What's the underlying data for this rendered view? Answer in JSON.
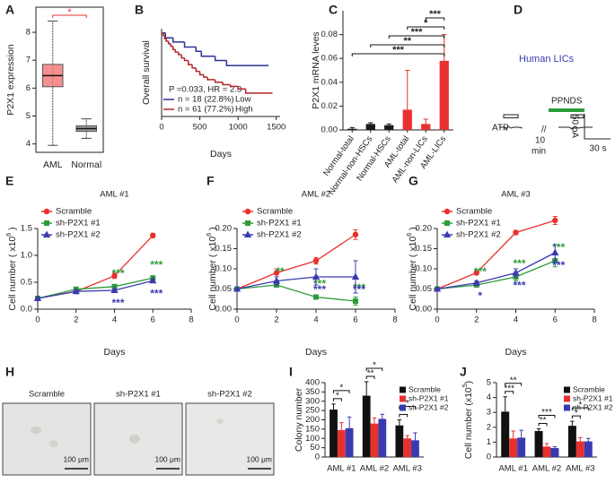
{
  "chart_data": [
    {
      "panel": "A",
      "type": "box",
      "ylabel": "P2X1 expression",
      "categories": [
        "AML",
        "Normal"
      ],
      "boxes": [
        {
          "color": "#f47c7c",
          "min": 3.95,
          "q1": 6.05,
          "median": 6.45,
          "q3": 6.85,
          "max": 8.4
        },
        {
          "color": "#8c8c8c",
          "min": 4.2,
          "q1": 4.45,
          "median": 4.55,
          "q3": 4.65,
          "max": 4.9
        }
      ],
      "ylim": [
        3.7,
        8.9
      ],
      "yticks": [
        4,
        5,
        6,
        7,
        8
      ],
      "significance": "*",
      "significance_color": "#e8312f"
    },
    {
      "panel": "B",
      "type": "line",
      "step": true,
      "ylabel": "Overall survival",
      "xlabel": "Days",
      "xlim": [
        0,
        1550
      ],
      "xticks": [
        0,
        500,
        1000,
        1500
      ],
      "ylim": [
        0,
        1.05
      ],
      "annotation": "P =0.033, HR = 2.3",
      "series": [
        {
          "name": "n = 18 (22.8%)",
          "group": "Low",
          "color": "#2e3192",
          "x": [
            0,
            50,
            150,
            300,
            450,
            520,
            700,
            850,
            1400
          ],
          "values": [
            1,
            0.94,
            0.89,
            0.83,
            0.78,
            0.72,
            0.67,
            0.61,
            0.61
          ]
        },
        {
          "name": "n = 61 (77.2%)",
          "group": "High",
          "color": "#b2262b",
          "x": [
            0,
            20,
            40,
            60,
            90,
            120,
            150,
            180,
            220,
            260,
            300,
            350,
            400,
            450,
            500,
            550,
            600,
            700,
            800,
            900,
            1000,
            1100,
            1450
          ],
          "values": [
            1,
            0.97,
            0.93,
            0.9,
            0.87,
            0.84,
            0.8,
            0.77,
            0.74,
            0.7,
            0.67,
            0.62,
            0.58,
            0.54,
            0.5,
            0.47,
            0.44,
            0.41,
            0.38,
            0.36,
            0.33,
            0.28,
            0.28
          ]
        }
      ]
    },
    {
      "panel": "C",
      "type": "bar",
      "ylabel": "P2X1 mRNA leves",
      "categories": [
        "Normal-total",
        "Normal-non-HSCs",
        "Normal-HSCs",
        "AML-total",
        "AML-non-LICs",
        "AML-LICs"
      ],
      "values": [
        0.001,
        0.005,
        0.004,
        0.017,
        0.005,
        0.058
      ],
      "errors": [
        0.001,
        0.001,
        0.001,
        0.033,
        0.004,
        0.022
      ],
      "colors": [
        "#1a1a1a",
        "#1a1a1a",
        "#1a1a1a",
        "#e8312f",
        "#e8312f",
        "#e8312f"
      ],
      "ylim": [
        0,
        0.1
      ],
      "yticks": [
        {
          "value": 0,
          "label": "0.00"
        },
        0.02,
        0.04,
        0.06,
        0.08
      ],
      "significance": [
        "***",
        "**",
        "***",
        "*",
        "***"
      ]
    },
    {
      "panel": "E",
      "type": "line",
      "title": "AML #1",
      "xlabel": "Days",
      "ylabel": [
        "Cell number ( x10",
        "6",
        " )"
      ],
      "x": [
        0,
        2,
        4,
        6
      ],
      "xlim": [
        0,
        8
      ],
      "xticks": [
        0,
        2,
        4,
        6,
        8
      ],
      "ylim": [
        0,
        1.5
      ],
      "yticks": [
        {
          "value": 0,
          "label": "0.0"
        },
        0.5,
        {
          "value": 1,
          "label": "1.0"
        },
        1.5
      ],
      "series": [
        {
          "name": "Scramble",
          "color": "#e8312f",
          "marker": "circle",
          "values": [
            0.2,
            0.33,
            0.62,
            1.37
          ],
          "errors": [
            0,
            0.02,
            0.05,
            0.04
          ]
        },
        {
          "name": "sh-P2X1 #1",
          "color": "#2e9b3a",
          "marker": "square",
          "values": [
            0.2,
            0.37,
            0.42,
            0.58
          ],
          "errors": [
            0,
            0.02,
            0.03,
            0.03
          ],
          "stars": [
            null,
            null,
            "***",
            "***"
          ]
        },
        {
          "name": "sh-P2X1 #2",
          "color": "#3a3ab0",
          "marker": "triangle",
          "values": [
            0.2,
            0.33,
            0.35,
            0.53
          ],
          "errors": [
            0,
            0.02,
            0.02,
            0.03
          ],
          "stars": [
            null,
            null,
            "***",
            "***"
          ]
        }
      ]
    },
    {
      "panel": "F",
      "type": "line",
      "title": "AML #2",
      "xlabel": "Days",
      "ylabel": [
        "Cell number ( x10",
        "6",
        " )"
      ],
      "x": [
        0,
        2,
        4,
        6
      ],
      "xlim": [
        0,
        8
      ],
      "xticks": [
        0,
        2,
        4,
        6,
        8
      ],
      "ylim": [
        0,
        0.2
      ],
      "yticks": [
        {
          "value": 0,
          "label": "0.00"
        },
        0.05,
        {
          "value": 0.1,
          "label": "0.10"
        },
        0.15,
        {
          "value": 0.2,
          "label": "0.20"
        }
      ],
      "series": [
        {
          "name": "Scramble",
          "color": "#e8312f",
          "marker": "circle",
          "values": [
            0.05,
            0.09,
            0.12,
            0.185
          ],
          "errors": [
            0,
            0.01,
            0.008,
            0.012
          ]
        },
        {
          "name": "sh-P2X1 #1",
          "color": "#2e9b3a",
          "marker": "square",
          "values": [
            0.05,
            0.06,
            0.03,
            0.02
          ],
          "errors": [
            0,
            0.005,
            0.005,
            0.01
          ],
          "stars": [
            null,
            "**",
            "***",
            "***"
          ]
        },
        {
          "name": "sh-P2X1 #2",
          "color": "#3a3ab0",
          "marker": "triangle",
          "values": [
            0.05,
            0.07,
            0.08,
            0.08
          ],
          "errors": [
            0,
            0.01,
            0.02,
            0.04
          ],
          "stars": [
            null,
            null,
            "***",
            "***"
          ]
        }
      ]
    },
    {
      "panel": "G",
      "type": "line",
      "title": "AML #3",
      "xlabel": "Days",
      "ylabel": [
        "Cell number ( x10",
        "6",
        " )"
      ],
      "x": [
        0,
        2,
        4,
        6
      ],
      "xlim": [
        0,
        8
      ],
      "xticks": [
        0,
        2,
        4,
        6,
        8
      ],
      "ylim": [
        0,
        0.2
      ],
      "yticks": [
        {
          "value": 0,
          "label": "0.00"
        },
        0.05,
        {
          "value": 0.1,
          "label": "0.10"
        },
        0.15,
        {
          "value": 0.2,
          "label": "0.20"
        }
      ],
      "series": [
        {
          "name": "Scramble",
          "color": "#e8312f",
          "marker": "circle",
          "values": [
            0.05,
            0.09,
            0.19,
            0.22
          ],
          "errors": [
            0,
            0.005,
            0.005,
            0.01
          ]
        },
        {
          "name": "sh-P2X1 #1",
          "color": "#2e9b3a",
          "marker": "square",
          "values": [
            0.05,
            0.06,
            0.08,
            0.12
          ],
          "errors": [
            0,
            0.005,
            0.01,
            0.015
          ],
          "stars": [
            null,
            "***",
            "***",
            "***"
          ]
        },
        {
          "name": "sh-P2X1 #2",
          "color": "#3a3ab0",
          "marker": "triangle",
          "values": [
            0.05,
            0.065,
            0.09,
            0.14
          ],
          "errors": [
            0,
            0.005,
            0.01,
            0.02
          ],
          "stars": [
            null,
            "*",
            "***",
            "***"
          ]
        }
      ]
    },
    {
      "panel": "I",
      "type": "bar",
      "ylabel": "Colony number",
      "categories": [
        "AML #1",
        "AML #2",
        "AML #3"
      ],
      "ylim": [
        0,
        400
      ],
      "yticks": [
        0,
        50,
        100,
        150,
        200,
        250,
        300,
        350,
        400
      ],
      "series": [
        {
          "name": "Scramble",
          "color": "#111111",
          "values": [
            255,
            330,
            170
          ],
          "errors": [
            30,
            75,
            30
          ]
        },
        {
          "name": "sh-P2X1 #1",
          "color": "#e8312f",
          "values": [
            145,
            180,
            100
          ],
          "errors": [
            40,
            30,
            15
          ]
        },
        {
          "name": "sh-P2X1 #2",
          "color": "#3a3ab0",
          "values": [
            155,
            205,
            90
          ],
          "errors": [
            60,
            25,
            40
          ]
        }
      ],
      "brackets": [
        [
          "*",
          "*"
        ],
        [
          "**",
          "*"
        ],
        [
          "*",
          "*"
        ]
      ]
    },
    {
      "panel": "J",
      "type": "bar",
      "ylabel": [
        "Cell number (x10",
        "5",
        ")"
      ],
      "categories": [
        "AML #1",
        "AML #2",
        "AML #3"
      ],
      "ylim": [
        0,
        5
      ],
      "yticks": [
        0,
        1,
        2,
        3,
        4,
        5
      ],
      "series": [
        {
          "name": "Scramble",
          "color": "#111111",
          "values": [
            3.05,
            1.75,
            2.1
          ],
          "errors": [
            1.0,
            0.15,
            0.3
          ]
        },
        {
          "name": "sh-P2X1 #1",
          "color": "#e8312f",
          "values": [
            1.25,
            0.7,
            1.05
          ],
          "errors": [
            0.5,
            0.2,
            0.25
          ]
        },
        {
          "name": "sh-P2X1 #2",
          "color": "#3a3ab0",
          "values": [
            1.3,
            0.6,
            1.05
          ],
          "errors": [
            0.5,
            0.1,
            0.2
          ]
        }
      ],
      "brackets": [
        [
          "***",
          "**"
        ],
        [
          "**",
          "***"
        ],
        [
          "*",
          "*"
        ]
      ]
    }
  ],
  "panel_d": {
    "panel": "D",
    "label": "Human LICs",
    "drug": "PPNDS",
    "agonist": "ATP",
    "break": "//",
    "interval": [
      "10",
      "min"
    ],
    "current_scale": "50 pA",
    "time_scale": "30 s"
  },
  "panel_h": {
    "panel": "H",
    "images": [
      {
        "label": "Scramble",
        "scale": "100 μm"
      },
      {
        "label": "sh-P2X1 #1",
        "scale": "100 μm"
      },
      {
        "label": "sh-P2X1 #2",
        "scale": "100 μm"
      }
    ]
  }
}
